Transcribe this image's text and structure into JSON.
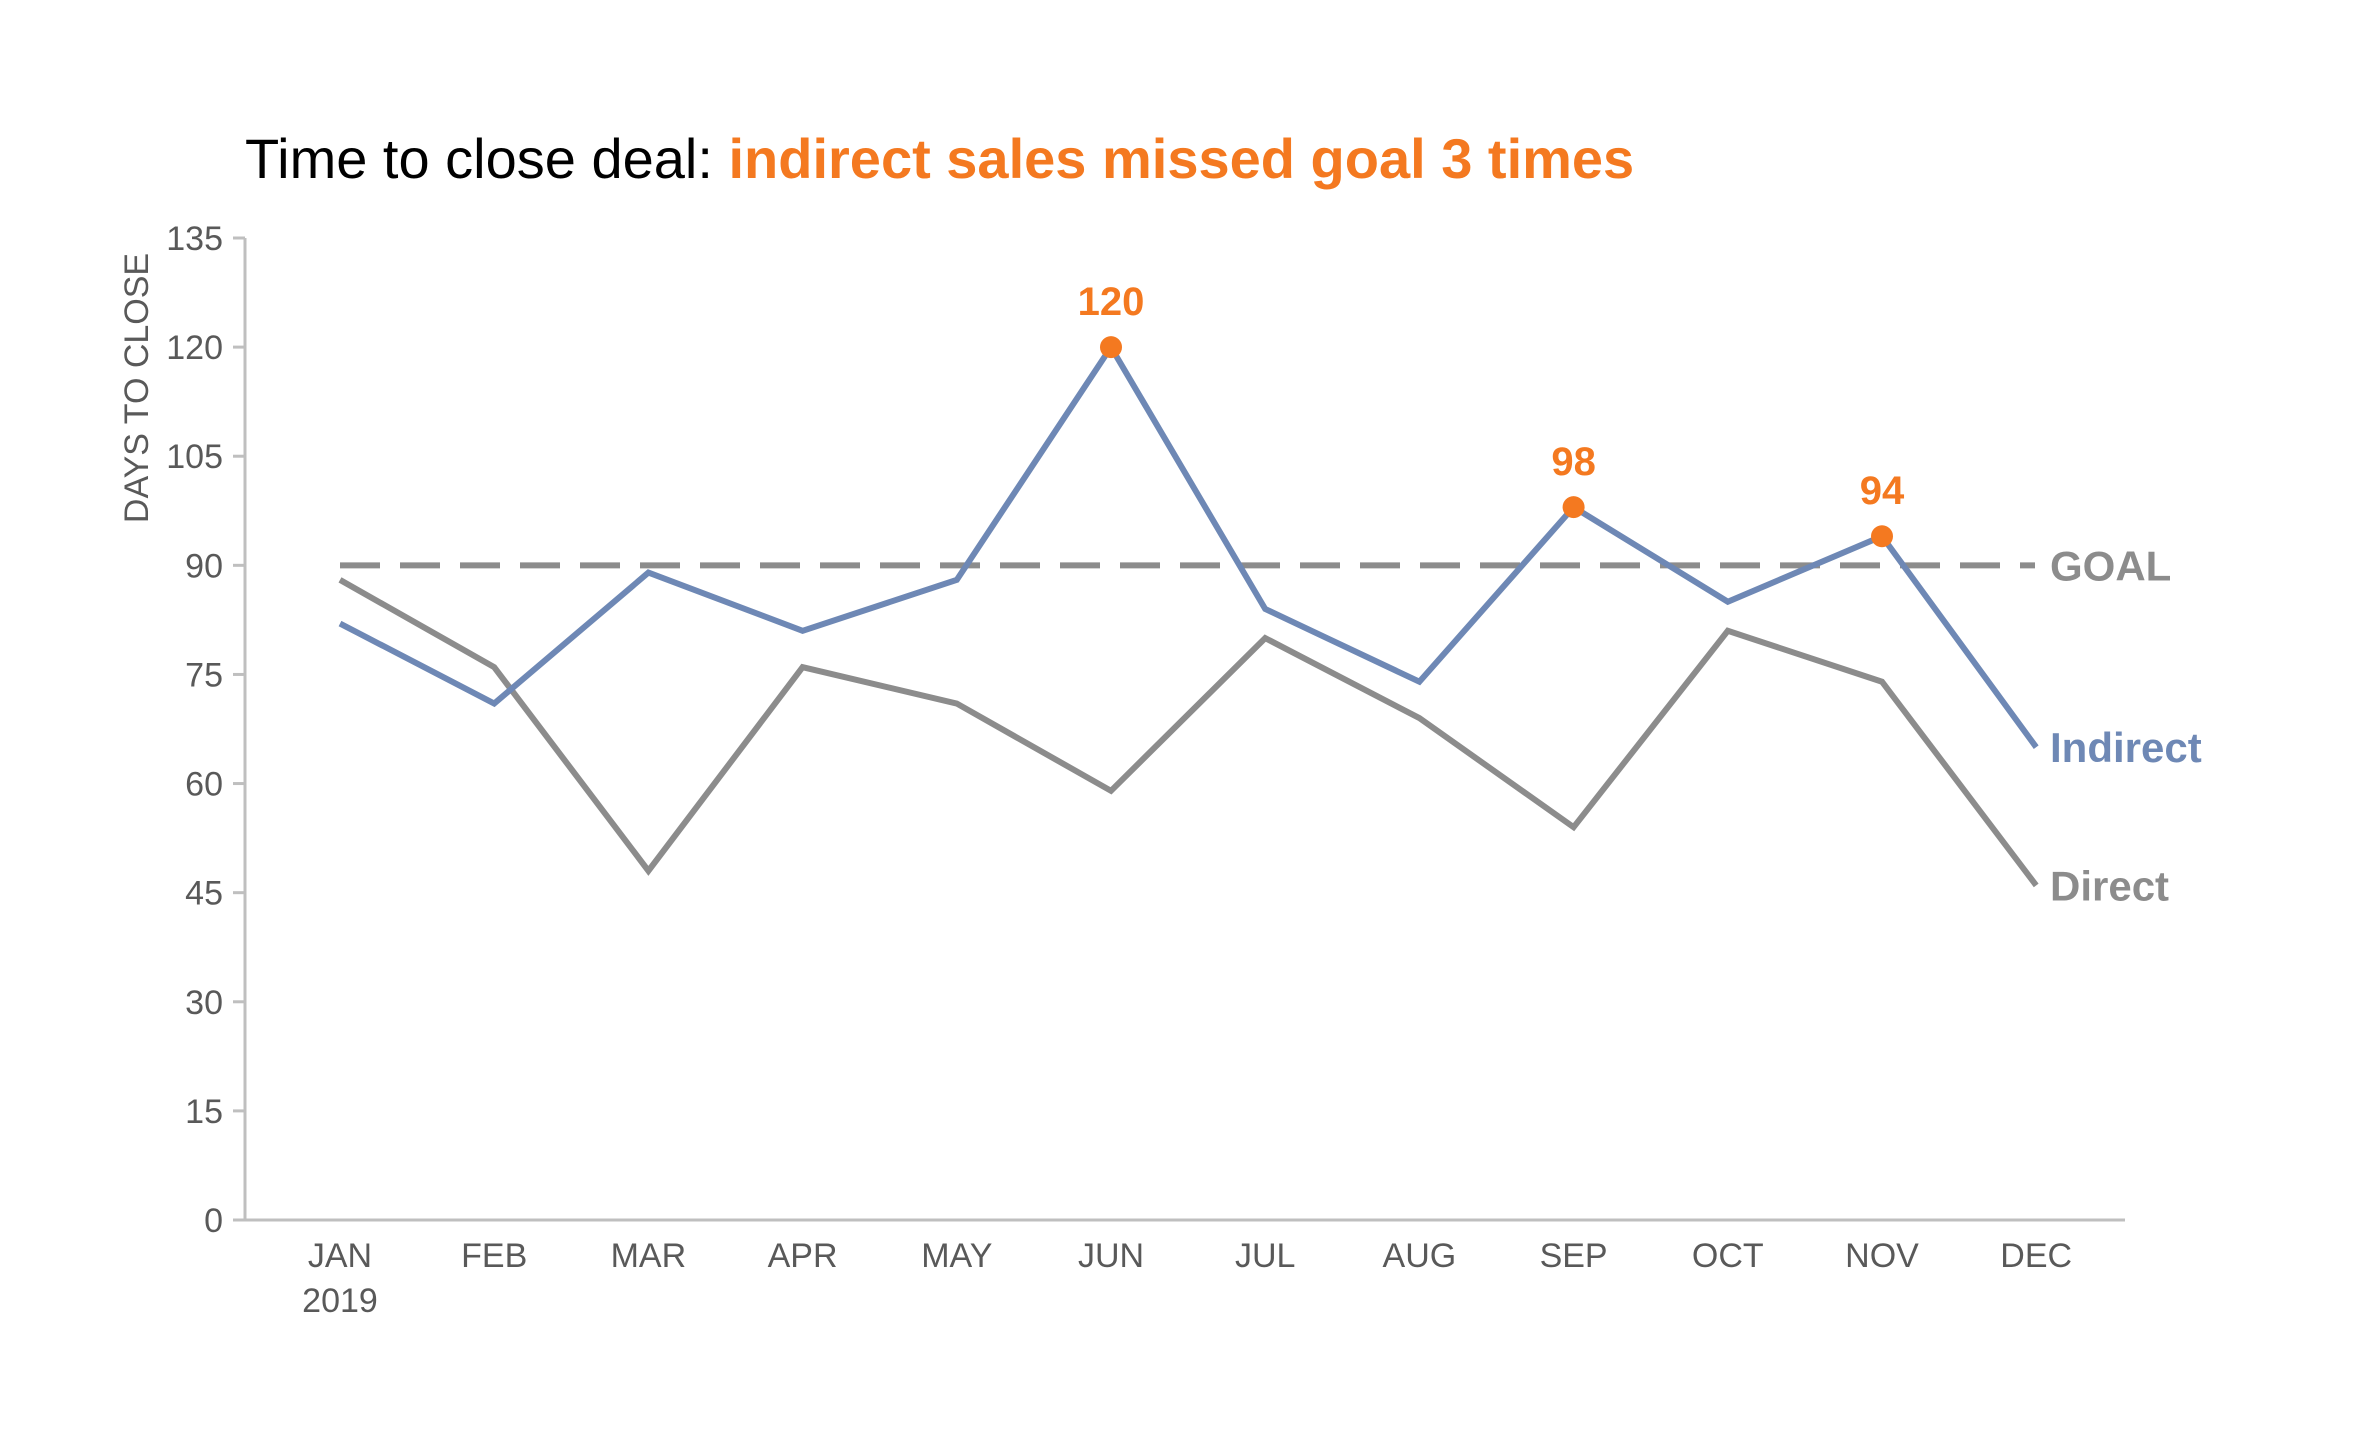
{
  "chart_data": {
    "type": "line",
    "title": {
      "prefix": "Time to close deal: ",
      "highlight": "indirect sales missed goal 3 times"
    },
    "xlabel": "",
    "ylabel": "DAYS TO CLOSE",
    "ylim": [
      0,
      135
    ],
    "yticks": [
      0,
      15,
      30,
      45,
      60,
      75,
      90,
      105,
      120,
      135
    ],
    "categories": [
      "JAN",
      "FEB",
      "MAR",
      "APR",
      "MAY",
      "JUN",
      "JUL",
      "AUG",
      "SEP",
      "OCT",
      "NOV",
      "DEC"
    ],
    "year_label": "2019",
    "series": [
      {
        "name": "Indirect",
        "color": "#6E88B5",
        "values": [
          82,
          71,
          89,
          81,
          88,
          120,
          84,
          74,
          98,
          85,
          94,
          65
        ]
      },
      {
        "name": "Direct",
        "color": "#8C8C8C",
        "values": [
          88,
          76,
          48,
          76,
          71,
          59,
          80,
          69,
          54,
          81,
          74,
          46
        ]
      }
    ],
    "goal": {
      "label": "GOAL",
      "value": 90,
      "color": "#8C8C8C"
    },
    "highlights": [
      {
        "category": "JUN",
        "value": 120,
        "label": "120"
      },
      {
        "category": "SEP",
        "value": 98,
        "label": "98"
      },
      {
        "category": "NOV",
        "value": 94,
        "label": "94"
      }
    ],
    "colors": {
      "accent": "#F47920",
      "axis": "#BFBFBF",
      "text": "#595959",
      "title": "#000000"
    },
    "grid": false,
    "legend": "direct labels at line ends (right)"
  }
}
